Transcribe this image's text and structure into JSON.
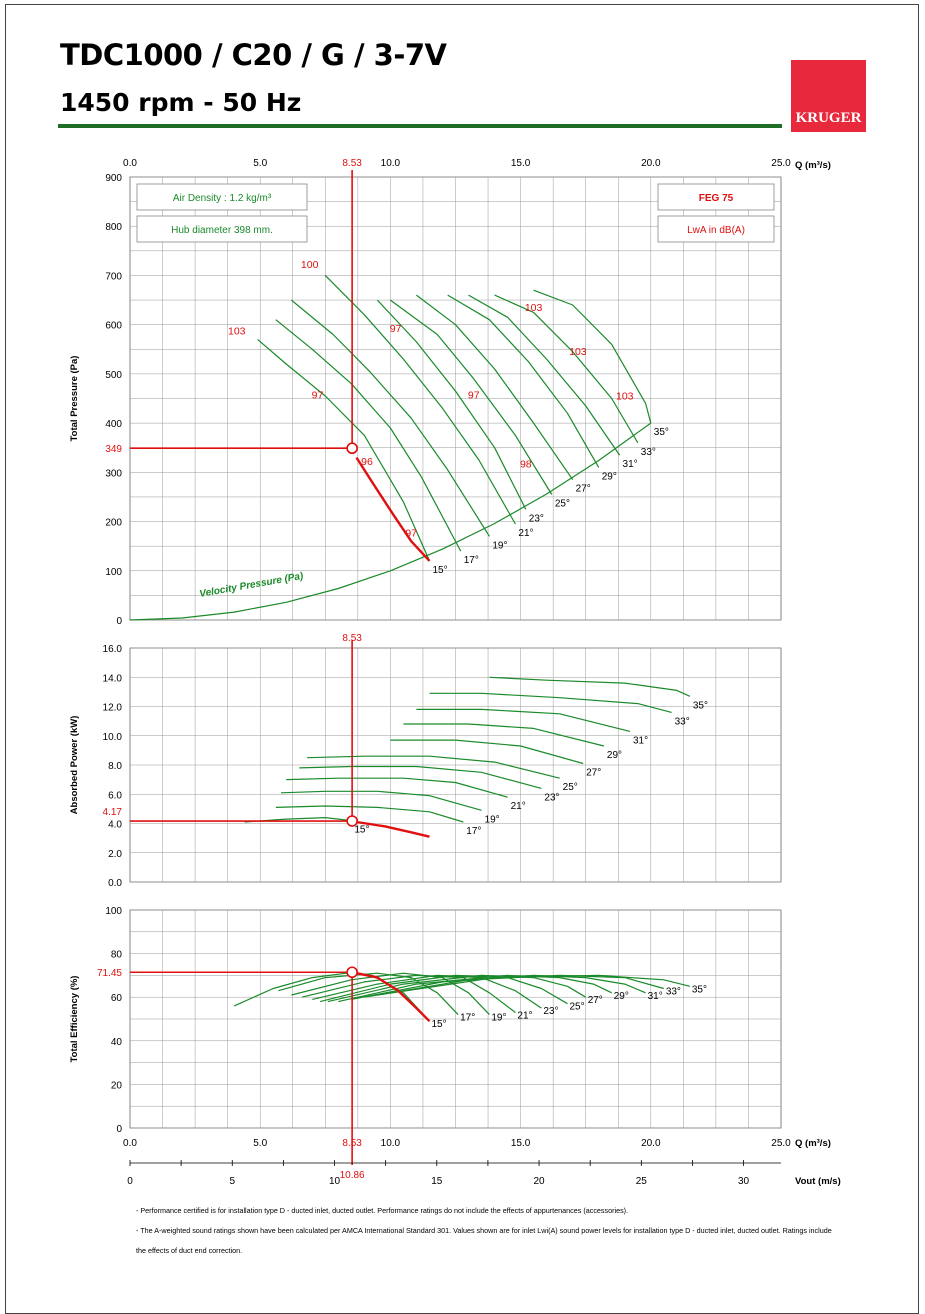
{
  "header": {
    "title": "TDC1000 / C20 / G / 3-7V",
    "subtitle": "1450 rpm - 50 Hz",
    "logo_text": "KRUGER",
    "logo_color": "#e8293c",
    "rule_color": "#1e6e28"
  },
  "colors": {
    "curve": "#1a8a2a",
    "operating": "#e01010",
    "grid": "#999999"
  },
  "boxes": {
    "air_density": "Air Density : 1.2 kg/m³",
    "hub_diameter": "Hub diameter 398 mm.",
    "feg": "FEG 75",
    "lwa": "LwA in dB(A)"
  },
  "operating_point": {
    "q": 8.53,
    "q_label": "8.53",
    "pressure": 349,
    "pressure_label": "349",
    "power": 4.17,
    "power_label": "4.17",
    "efficiency": 71.45,
    "efficiency_label": "71.45",
    "vout": 10.86,
    "vout_label": "10.86"
  },
  "chart_data": [
    {
      "type": "line",
      "name": "pressure",
      "ylabel": "Total Pressure (Pa)",
      "xlabel": "Q (m³/s)",
      "xlim": [
        0,
        25
      ],
      "ylim": [
        0,
        900
      ],
      "x_ticks": [
        "0.0",
        "5.0",
        "10.0",
        "15.0",
        "20.0",
        "25.0"
      ],
      "y_ticks": [
        "0",
        "100",
        "200",
        "300",
        "400",
        "500",
        "600",
        "700",
        "800",
        "900"
      ],
      "velocity_label": "Velocity Pressure (Pa)",
      "velocity_pressure": {
        "x": [
          0,
          2,
          4,
          6,
          8,
          10,
          12,
          14,
          16,
          18,
          20
        ],
        "y": [
          0,
          4,
          16,
          36,
          64,
          100,
          144,
          196,
          256,
          324,
          400
        ]
      },
      "series": [
        {
          "name": "15°",
          "x": [
            4.9,
            6.0,
            7.5,
            9.0,
            10.5,
            11.5
          ],
          "y": [
            570,
            520,
            455,
            375,
            240,
            120
          ]
        },
        {
          "name": "17°",
          "x": [
            5.6,
            7.0,
            8.5,
            10.0,
            11.2,
            12.7
          ],
          "y": [
            610,
            550,
            480,
            390,
            290,
            140
          ]
        },
        {
          "name": "19°",
          "x": [
            6.2,
            7.8,
            9.2,
            10.8,
            12.2,
            13.8
          ],
          "y": [
            650,
            580,
            505,
            410,
            305,
            170
          ]
        },
        {
          "name": "21°",
          "x": [
            7.5,
            9.0,
            10.5,
            12.0,
            13.4,
            14.8
          ],
          "y": [
            700,
            620,
            530,
            430,
            325,
            195
          ]
        },
        {
          "name": "23°",
          "x": [
            9.5,
            11.0,
            12.5,
            14.0,
            15.2
          ],
          "y": [
            650,
            565,
            465,
            350,
            225
          ]
        },
        {
          "name": "25°",
          "x": [
            10.0,
            11.8,
            13.2,
            14.8,
            16.2
          ],
          "y": [
            650,
            580,
            490,
            375,
            255
          ]
        },
        {
          "name": "27°",
          "x": [
            11.0,
            12.5,
            14.0,
            15.5,
            17.0
          ],
          "y": [
            660,
            600,
            510,
            400,
            285
          ]
        },
        {
          "name": "29°",
          "x": [
            12.2,
            13.8,
            15.3,
            16.8,
            18.0
          ],
          "y": [
            660,
            610,
            525,
            420,
            310
          ]
        },
        {
          "name": "31°",
          "x": [
            13.0,
            14.5,
            16.0,
            17.5,
            18.8
          ],
          "y": [
            660,
            615,
            530,
            435,
            335
          ]
        },
        {
          "name": "33°",
          "x": [
            14.0,
            15.5,
            17.0,
            18.5,
            19.5
          ],
          "y": [
            660,
            625,
            545,
            450,
            360
          ]
        },
        {
          "name": "35°",
          "x": [
            15.5,
            17.0,
            18.5,
            19.8,
            20.0
          ],
          "y": [
            670,
            640,
            560,
            440,
            400
          ]
        }
      ],
      "operating_curve": {
        "x": [
          8.7,
          9.3,
          10.1,
          10.8,
          11.5
        ],
        "y": [
          330,
          280,
          215,
          160,
          120
        ]
      },
      "sound_labels": [
        {
          "text": "100",
          "x": 6.9,
          "y": 715
        },
        {
          "text": "103",
          "x": 4.1,
          "y": 580
        },
        {
          "text": "97",
          "x": 10.2,
          "y": 585
        },
        {
          "text": "97",
          "x": 7.2,
          "y": 450
        },
        {
          "text": "97",
          "x": 13.2,
          "y": 450
        },
        {
          "text": "103",
          "x": 15.5,
          "y": 628
        },
        {
          "text": "103",
          "x": 17.2,
          "y": 538
        },
        {
          "text": "103",
          "x": 19.0,
          "y": 448
        },
        {
          "text": "96",
          "x": 9.1,
          "y": 315
        },
        {
          "text": "98",
          "x": 15.2,
          "y": 310
        },
        {
          "text": "97",
          "x": 10.8,
          "y": 170
        }
      ]
    },
    {
      "type": "line",
      "name": "power",
      "ylabel": "Absorbed Power (kW)",
      "xlim": [
        0,
        25
      ],
      "ylim": [
        0,
        16
      ],
      "y_ticks": [
        "0.0",
        "2.0",
        "4.0",
        "6.0",
        "8.0",
        "10.0",
        "12.0",
        "14.0",
        "16.0"
      ],
      "series": [
        {
          "name": "15°",
          "x": [
            4.4,
            6.0,
            7.5,
            8.5
          ],
          "y": [
            4.1,
            4.3,
            4.4,
            4.2
          ]
        },
        {
          "name": "17°",
          "x": [
            5.6,
            7.5,
            9.5,
            11.5,
            12.8
          ],
          "y": [
            5.1,
            5.2,
            5.1,
            4.8,
            4.1
          ]
        },
        {
          "name": "19°",
          "x": [
            5.8,
            7.5,
            9.5,
            11.5,
            13.5
          ],
          "y": [
            6.1,
            6.2,
            6.2,
            5.9,
            4.9
          ]
        },
        {
          "name": "21°",
          "x": [
            6.0,
            8.0,
            10.5,
            12.5,
            14.5
          ],
          "y": [
            7.0,
            7.1,
            7.1,
            6.8,
            5.8
          ]
        },
        {
          "name": "23°",
          "x": [
            6.5,
            8.5,
            11.0,
            13.5,
            15.8
          ],
          "y": [
            7.8,
            7.9,
            7.9,
            7.5,
            6.4
          ]
        },
        {
          "name": "25°",
          "x": [
            6.8,
            9.0,
            11.5,
            14.0,
            16.5
          ],
          "y": [
            8.5,
            8.6,
            8.6,
            8.2,
            7.1
          ]
        },
        {
          "name": "27°",
          "x": [
            10.0,
            12.5,
            15.0,
            17.4
          ],
          "y": [
            9.7,
            9.7,
            9.3,
            8.1
          ]
        },
        {
          "name": "29°",
          "x": [
            10.5,
            13.0,
            15.5,
            18.2
          ],
          "y": [
            10.8,
            10.8,
            10.5,
            9.3
          ]
        },
        {
          "name": "31°",
          "x": [
            11.0,
            13.5,
            16.5,
            19.2
          ],
          "y": [
            11.8,
            11.8,
            11.5,
            10.3
          ]
        },
        {
          "name": "33°",
          "x": [
            11.5,
            13.5,
            16.5,
            19.5,
            20.8
          ],
          "y": [
            12.9,
            12.9,
            12.6,
            12.2,
            11.6
          ]
        },
        {
          "name": "35°",
          "x": [
            13.8,
            16.0,
            19.0,
            21.0,
            21.5
          ],
          "y": [
            14.0,
            13.8,
            13.6,
            13.1,
            12.7
          ]
        }
      ],
      "operating_curve": {
        "x": [
          8.7,
          9.8,
          10.8,
          11.5
        ],
        "y": [
          4.1,
          3.8,
          3.4,
          3.1
        ]
      }
    },
    {
      "type": "line",
      "name": "efficiency",
      "ylabel": "Total Efficiency (%)",
      "xlim": [
        0,
        25
      ],
      "ylim": [
        0,
        100
      ],
      "y_ticks": [
        "0",
        "20",
        "40",
        "60",
        "80",
        "100"
      ],
      "series": [
        {
          "name": "15°",
          "x": [
            4.0,
            5.5,
            7.0,
            8.3,
            9.3,
            10.5,
            11.5
          ],
          "y": [
            56,
            64,
            69,
            71,
            70,
            62,
            49
          ]
        },
        {
          "name": "17°",
          "x": [
            5.7,
            7.5,
            9.5,
            10.8,
            11.8,
            12.6
          ],
          "y": [
            63,
            69,
            71,
            69,
            62,
            52
          ]
        },
        {
          "name": "19°",
          "x": [
            6.2,
            8.5,
            10.5,
            12.0,
            13.0,
            13.8
          ],
          "y": [
            61,
            68,
            71,
            69,
            62,
            52
          ]
        },
        {
          "name": "21°",
          "x": [
            6.6,
            9.0,
            11.0,
            12.8,
            13.8,
            14.8
          ],
          "y": [
            60,
            67,
            70,
            69,
            62,
            53
          ]
        },
        {
          "name": "23°",
          "x": [
            7.0,
            9.5,
            11.8,
            13.5,
            14.8,
            15.8
          ],
          "y": [
            59,
            66,
            70,
            69,
            63,
            55
          ]
        },
        {
          "name": "25°",
          "x": [
            7.3,
            10.0,
            12.5,
            14.5,
            15.8,
            16.8
          ],
          "y": [
            58,
            66,
            70,
            69,
            64,
            57
          ]
        },
        {
          "name": "27°",
          "x": [
            7.6,
            10.5,
            13.5,
            15.5,
            16.8,
            17.5
          ],
          "y": [
            58,
            66,
            70,
            69,
            65,
            60
          ]
        },
        {
          "name": "29°",
          "x": [
            8.0,
            11.0,
            14.5,
            16.5,
            17.8,
            18.5
          ],
          "y": [
            58,
            66,
            70,
            69,
            66,
            62
          ]
        },
        {
          "name": "31°",
          "x": [
            8.5,
            12.0,
            15.5,
            17.5,
            19.0,
            19.8
          ],
          "y": [
            59,
            67,
            70,
            69,
            66,
            62
          ]
        },
        {
          "name": "33°",
          "x": [
            9.0,
            13.0,
            16.5,
            19.0,
            20.5
          ],
          "y": [
            60,
            68,
            70,
            69,
            64
          ]
        },
        {
          "name": "35°",
          "x": [
            9.5,
            14.0,
            18.0,
            20.5,
            21.5
          ],
          "y": [
            61,
            69,
            70,
            68,
            65
          ]
        }
      ],
      "operating_curve": {
        "x": [
          8.53,
          9.5,
          10.3,
          11.0,
          11.5
        ],
        "y": [
          71.45,
          69,
          63,
          55,
          49
        ]
      }
    }
  ],
  "vout_axis": {
    "label": "Vout (m/s)",
    "ticks": [
      "0",
      "5",
      "10",
      "15",
      "20",
      "25",
      "30"
    ],
    "vmax": 31.83
  },
  "notes": [
    "- Performance certified is for installation type D - ducted inlet, ducted outlet. Performance ratings do not include the effects of appurtenances (accessories).",
    "- The A-weighted sound ratings shown have been calculated per AMCA International Standard 301. Values shown are for inlet Lwi(A) sound power levels for installation type D - ducted inlet, ducted outlet. Ratings include the effects of duct end correction."
  ]
}
